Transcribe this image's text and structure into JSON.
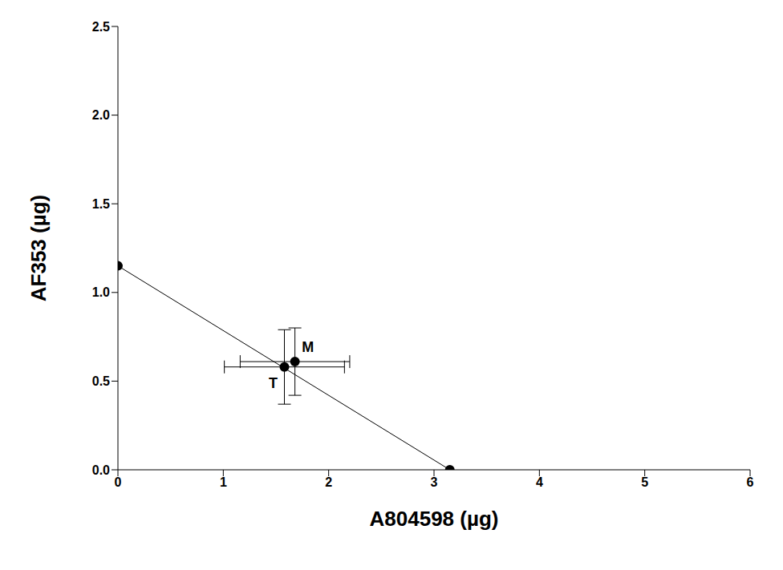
{
  "chart_data": {
    "type": "scatter",
    "x_label": "A804598 (µg)",
    "y_label": "AF353 (µg)",
    "color": "#000000",
    "marker": "circle",
    "grid": false,
    "xlim": [
      0,
      6
    ],
    "xticks": [
      0,
      1,
      2,
      3,
      4,
      5,
      6
    ],
    "ylim": [
      0,
      2.5
    ],
    "yticks": [
      {
        "value": 0,
        "label": "0.0"
      },
      {
        "value": 0.5,
        "label": "0.5"
      },
      {
        "value": 1,
        "label": "1.0"
      },
      {
        "value": 1.5,
        "label": "1.5"
      },
      {
        "value": 2,
        "label": "2.0"
      },
      {
        "value": 2.5,
        "label": "2.5"
      }
    ],
    "line": {
      "x": [
        0,
        3.15
      ],
      "y": [
        1.15,
        0
      ],
      "line_style": "solid"
    },
    "points": [
      {
        "label": "T",
        "x": 1.58,
        "y": 0.58,
        "x_error": 0.57,
        "y_error": 0.21
      },
      {
        "label": "M",
        "x": 1.68,
        "y": 0.61,
        "x_error": 0.52,
        "y_error": 0.19
      }
    ]
  }
}
